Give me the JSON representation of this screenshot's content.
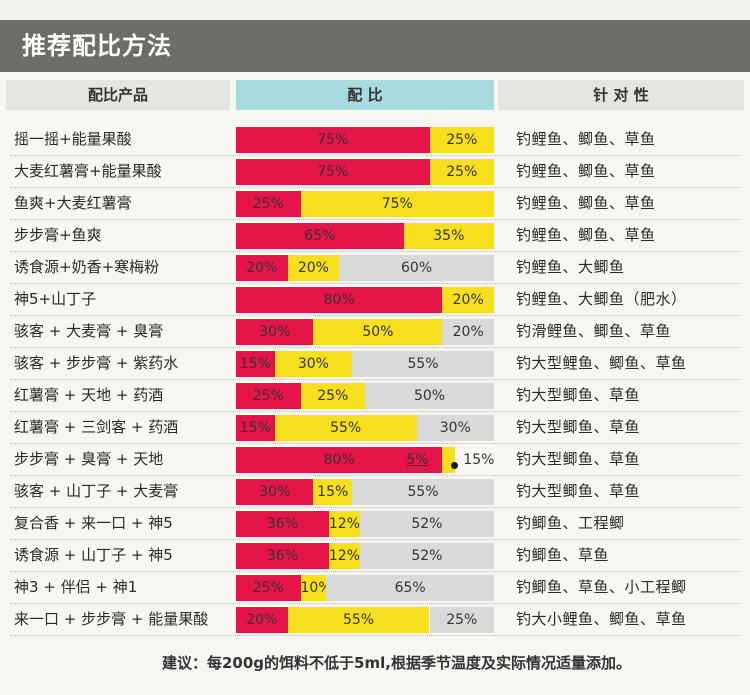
{
  "title": "推荐配比方法",
  "headers": {
    "product": "配比产品",
    "ratio": "配  比",
    "target": "针 对 性"
  },
  "colors": {
    "red": "#e5154a",
    "yellow": "#f6df1c",
    "gray": "#d9d9db",
    "header_ratio": "#a8dbe0",
    "banner": "#6b6e66"
  },
  "rows": [
    {
      "product": "摇一摇+能量果酸",
      "segments": [
        {
          "label": "75%",
          "value": 75,
          "color": "red"
        },
        {
          "label": "25%",
          "value": 25,
          "color": "yellow"
        }
      ],
      "target": "钓鲤鱼、鲫鱼、草鱼"
    },
    {
      "product": "大麦红薯膏+能量果酸",
      "segments": [
        {
          "label": "75%",
          "value": 75,
          "color": "red"
        },
        {
          "label": "25%",
          "value": 25,
          "color": "yellow"
        }
      ],
      "target": "钓鲤鱼、鲫鱼、草鱼"
    },
    {
      "product": "鱼爽+大麦红薯膏",
      "segments": [
        {
          "label": "25%",
          "value": 25,
          "color": "red"
        },
        {
          "label": "75%",
          "value": 75,
          "color": "yellow"
        }
      ],
      "target": "钓鲤鱼、鲫鱼、草鱼"
    },
    {
      "product": "步步膏+鱼爽",
      "segments": [
        {
          "label": "65%",
          "value": 65,
          "color": "red"
        },
        {
          "label": "35%",
          "value": 35,
          "color": "yellow"
        }
      ],
      "target": "钓鲤鱼、鲫鱼、草鱼"
    },
    {
      "product": "诱食源+奶香+寒梅粉",
      "segments": [
        {
          "label": "20%",
          "value": 20,
          "color": "red"
        },
        {
          "label": "20%",
          "value": 20,
          "color": "yellow"
        },
        {
          "label": "60%",
          "value": 60,
          "color": "gray"
        }
      ],
      "target": "钓鲤鱼、大鲫鱼"
    },
    {
      "product": "神5+山丁子",
      "segments": [
        {
          "label": "80%",
          "value": 80,
          "color": "red"
        },
        {
          "label": "20%",
          "value": 20,
          "color": "yellow"
        }
      ],
      "target": "钓鲤鱼、大鲫鱼（肥水）"
    },
    {
      "product": "骇客 + 大麦膏 + 臭膏",
      "segments": [
        {
          "label": "30%",
          "value": 30,
          "color": "red"
        },
        {
          "label": "50%",
          "value": 50,
          "color": "yellow"
        },
        {
          "label": "20%",
          "value": 20,
          "color": "gray"
        }
      ],
      "target": "钓滑鲤鱼、鲫鱼、草鱼"
    },
    {
      "product": "骇客 + 步步膏 + 紫药水",
      "segments": [
        {
          "label": "15%",
          "value": 15,
          "color": "red"
        },
        {
          "label": "30%",
          "value": 30,
          "color": "yellow"
        },
        {
          "label": "55%",
          "value": 55,
          "color": "gray"
        }
      ],
      "target": "钓大型鲤鱼、鲫鱼、草鱼"
    },
    {
      "product": "红薯膏 + 天地 + 药酒",
      "segments": [
        {
          "label": "25%",
          "value": 25,
          "color": "red"
        },
        {
          "label": "25%",
          "value": 25,
          "color": "yellow"
        },
        {
          "label": "50%",
          "value": 50,
          "color": "gray"
        }
      ],
      "target": "钓大型鲫鱼、草鱼"
    },
    {
      "product": "红薯膏 + 三剑客 + 药酒",
      "segments": [
        {
          "label": "15%",
          "value": 15,
          "color": "red"
        },
        {
          "label": "55%",
          "value": 55,
          "color": "yellow"
        },
        {
          "label": "30%",
          "value": 30,
          "color": "gray"
        }
      ],
      "target": "钓大型鲫鱼、草鱼"
    },
    {
      "product": "步步膏 + 臭膏 + 天地",
      "segments": [
        {
          "label": "80%",
          "value": 80,
          "color": "red"
        },
        {
          "label": "5%",
          "value": 5,
          "color": "yellow"
        },
        {
          "label": "15%",
          "value": 15,
          "color": "gray"
        }
      ],
      "target": "钓大型鲫鱼、草鱼"
    },
    {
      "product": "骇客 + 山丁子 + 大麦膏",
      "segments": [
        {
          "label": "30%",
          "value": 30,
          "color": "red"
        },
        {
          "label": "15%",
          "value": 15,
          "color": "yellow"
        },
        {
          "label": "55%",
          "value": 55,
          "color": "gray"
        }
      ],
      "target": "钓大型鲫鱼、草鱼"
    },
    {
      "product": "复合香 + 来一口 + 神5",
      "segments": [
        {
          "label": "36%",
          "value": 36,
          "color": "red"
        },
        {
          "label": "12%",
          "value": 12,
          "color": "yellow"
        },
        {
          "label": "52%",
          "value": 52,
          "color": "gray"
        }
      ],
      "target": "钓鲫鱼、工程鲫"
    },
    {
      "product": "诱食源 + 山丁子 + 神5",
      "segments": [
        {
          "label": "36%",
          "value": 36,
          "color": "red"
        },
        {
          "label": "12%",
          "value": 12,
          "color": "yellow"
        },
        {
          "label": "52%",
          "value": 52,
          "color": "gray"
        }
      ],
      "target": "钓鲫鱼、草鱼"
    },
    {
      "product": "神3 + 伴侣 + 神1",
      "segments": [
        {
          "label": "25%",
          "value": 25,
          "color": "red"
        },
        {
          "label": "10%",
          "value": 10,
          "color": "yellow"
        },
        {
          "label": "65%",
          "value": 65,
          "color": "gray"
        }
      ],
      "target": "钓鲫鱼、草鱼、小工程鲫"
    },
    {
      "product": "来一口 + 步步膏 + 能量果酸",
      "segments": [
        {
          "label": "20%",
          "value": 20,
          "color": "red"
        },
        {
          "label": "55%",
          "value": 55,
          "color": "yellow"
        },
        {
          "label": "25%",
          "value": 25,
          "color": "gray"
        }
      ],
      "target": "钓大小鲤鱼、鲫鱼、草鱼"
    }
  ],
  "note": "建议：每200g的饵料不低于5ml,根据季节温度及实际情况适量添加。"
}
